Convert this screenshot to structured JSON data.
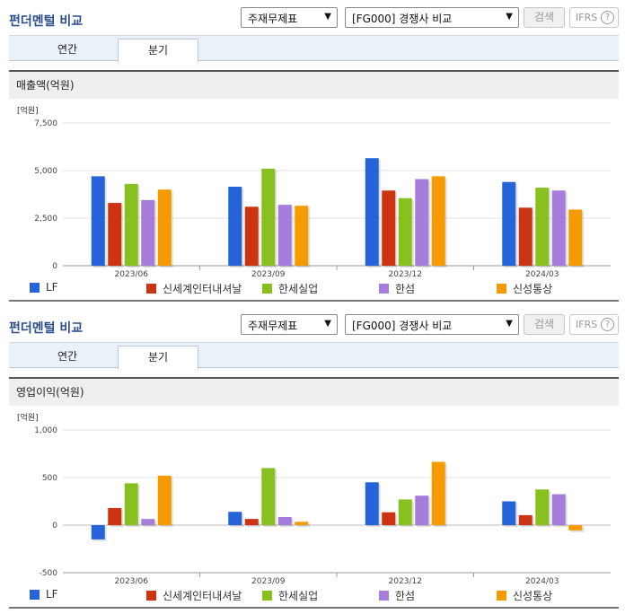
{
  "panels": [
    {
      "title": "펀더멘털 비교",
      "select1": "주재무제표",
      "select2": "[FG000] 경쟁사 비교",
      "search_label": "검색",
      "ifrs_label": "IFRS",
      "help_glyph": "?",
      "tabs": [
        {
          "label": "연간",
          "active": false
        },
        {
          "label": "분기",
          "active": true
        }
      ],
      "section_title": "매출액(억원)"
    },
    {
      "title": "펀더멘털 비교",
      "select1": "주재무제표",
      "select2": "[FG000] 경쟁사 비교",
      "search_label": "검색",
      "ifrs_label": "IFRS",
      "help_glyph": "?",
      "tabs": [
        {
          "label": "연간",
          "active": false
        },
        {
          "label": "분기",
          "active": true
        }
      ],
      "section_title": "영업이익(억원)"
    }
  ],
  "chart_data": [
    {
      "type": "bar",
      "unit_label": "[억원]",
      "categories": [
        "2023/06",
        "2023/09",
        "2023/12",
        "2024/03"
      ],
      "ylim": [
        0,
        7500
      ],
      "yticks": [
        0,
        2500,
        5000,
        7500
      ],
      "ytick_labels": [
        "0",
        "2,500",
        "5,000",
        "7,500"
      ],
      "grid": true,
      "legend": "bottom",
      "series": [
        {
          "name": "LF",
          "color": "#2563d9",
          "values": [
            4700,
            4150,
            5650,
            4400
          ]
        },
        {
          "name": "신세계인터내셔날",
          "color": "#cc3311",
          "values": [
            3300,
            3100,
            3950,
            3050
          ]
        },
        {
          "name": "한세실업",
          "color": "#88c020",
          "values": [
            4300,
            5100,
            3550,
            4100
          ]
        },
        {
          "name": "한섬",
          "color": "#a77ddb",
          "values": [
            3450,
            3200,
            4550,
            3950
          ]
        },
        {
          "name": "신성통상",
          "color": "#f59a00",
          "values": [
            4000,
            3150,
            4700,
            2950
          ]
        }
      ]
    },
    {
      "type": "bar",
      "unit_label": "[억원]",
      "categories": [
        "2023/06",
        "2023/09",
        "2023/12",
        "2024/03"
      ],
      "ylim": [
        -500,
        1000
      ],
      "yticks": [
        -500,
        0,
        500,
        1000
      ],
      "ytick_labels": [
        "-500",
        "0",
        "500",
        "1,000"
      ],
      "grid": true,
      "legend": "bottom",
      "series": [
        {
          "name": "LF",
          "color": "#2563d9",
          "values": [
            -150,
            140,
            450,
            250
          ]
        },
        {
          "name": "신세계인터내셔날",
          "color": "#cc3311",
          "values": [
            180,
            65,
            135,
            105
          ]
        },
        {
          "name": "한세실업",
          "color": "#88c020",
          "values": [
            440,
            600,
            270,
            375
          ]
        },
        {
          "name": "한섬",
          "color": "#a77ddb",
          "values": [
            65,
            85,
            310,
            325
          ]
        },
        {
          "name": "신성통상",
          "color": "#f59a00",
          "values": [
            520,
            35,
            665,
            -55
          ]
        }
      ]
    }
  ]
}
